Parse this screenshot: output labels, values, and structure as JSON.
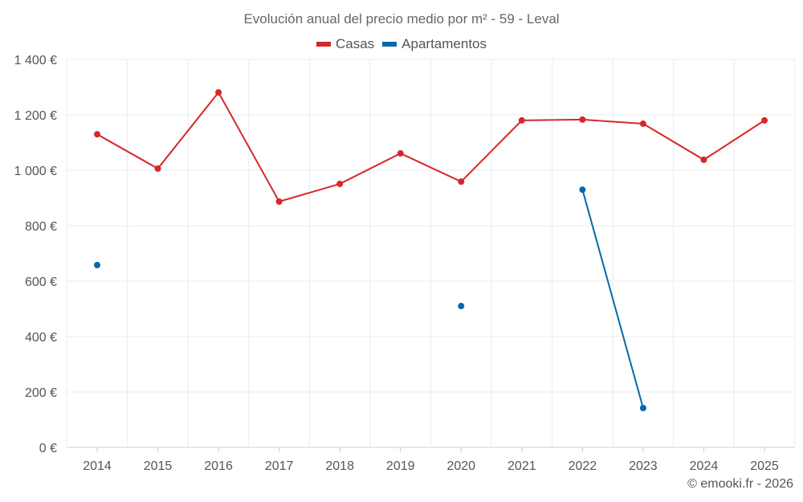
{
  "chart_data": {
    "type": "line",
    "title": "Evolución anual del precio medio por m² - 59 - Leval",
    "xlabel": "",
    "ylabel": "",
    "categories": [
      "2014",
      "2015",
      "2016",
      "2017",
      "2018",
      "2019",
      "2020",
      "2021",
      "2022",
      "2023",
      "2024",
      "2025"
    ],
    "ylim": [
      0,
      1400
    ],
    "yticks": [
      0,
      200,
      400,
      600,
      800,
      1000,
      1200,
      1400
    ],
    "ytick_labels": [
      "0 €",
      "200 €",
      "400 €",
      "600 €",
      "800 €",
      "1 000 €",
      "1 200 €",
      "1 400 €"
    ],
    "grid": true,
    "legend_position": "top-center",
    "series": [
      {
        "name": "Casas",
        "color": "#d62728",
        "values": [
          1130,
          1006,
          1281,
          887,
          951,
          1061,
          959,
          1180,
          1183,
          1168,
          1038,
          1180
        ]
      },
      {
        "name": "Apartamentos",
        "color": "#0868a8",
        "values": [
          658,
          null,
          null,
          null,
          null,
          null,
          510,
          null,
          930,
          142,
          null,
          null
        ]
      }
    ]
  },
  "credit": "© emooki.fr - 2026"
}
